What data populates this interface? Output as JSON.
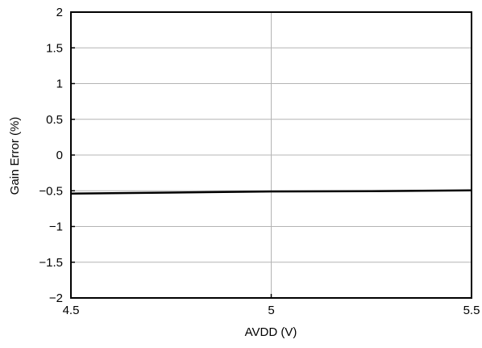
{
  "chart_data": {
    "type": "line",
    "title": "",
    "xlabel": "AVDD (V)",
    "ylabel": "Gain Error (%)",
    "xlim": [
      4.5,
      5.5
    ],
    "ylim": [
      -2,
      2
    ],
    "xticks": [
      4.5,
      5,
      5.5
    ],
    "xtick_labels": [
      "4.5",
      "5",
      "5.5"
    ],
    "yticks": [
      2,
      1.5,
      1,
      0.5,
      0,
      -0.5,
      -1,
      -1.5,
      -2
    ],
    "ytick_labels": [
      "2",
      "1.5",
      "1",
      "0.5",
      "0",
      "−0.5",
      "−1",
      "−1.5",
      "−2"
    ],
    "grid": true,
    "legend": "none",
    "series": [
      {
        "x": [
          4.5,
          4.75,
          5.0,
          5.25,
          5.5
        ],
        "y": [
          -0.54,
          -0.525,
          -0.51,
          -0.505,
          -0.495
        ],
        "color": "#000000"
      }
    ]
  }
}
